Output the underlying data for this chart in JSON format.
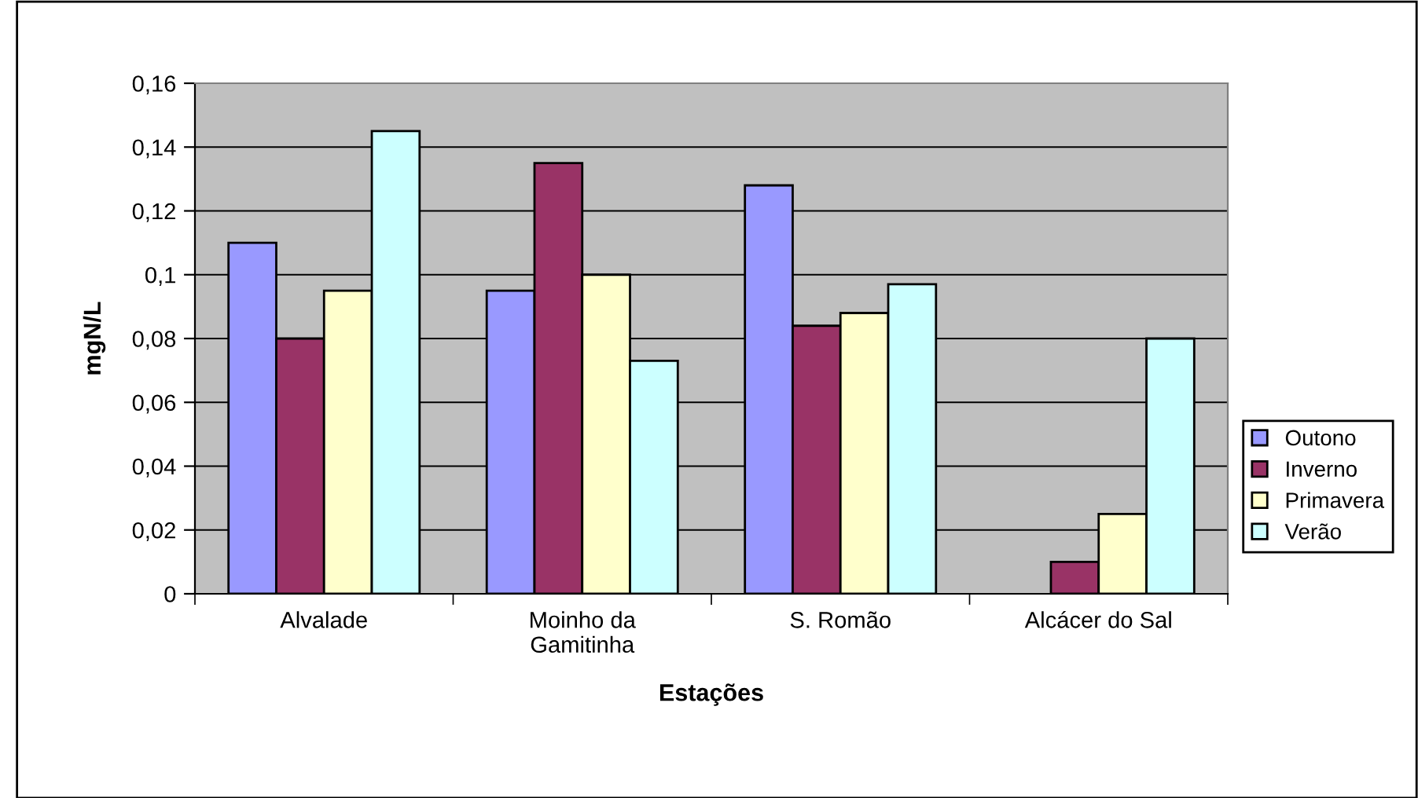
{
  "chart_data": {
    "type": "bar",
    "xlabel": "Estações",
    "ylabel": "mgN/L",
    "categories": [
      "Alvalade",
      "Moinho da\nGamitinha",
      "S. Romão",
      "Alcácer do Sal"
    ],
    "series": [
      {
        "name": "Outono",
        "color": "#9999ff",
        "values": [
          0.11,
          0.095,
          0.128,
          null
        ]
      },
      {
        "name": "Inverno",
        "color": "#993366",
        "values": [
          0.08,
          0.135,
          0.084,
          0.01
        ]
      },
      {
        "name": "Primavera",
        "color": "#ffffcc",
        "values": [
          0.095,
          0.1,
          0.088,
          0.025
        ]
      },
      {
        "name": "Verão",
        "color": "#ccffff",
        "values": [
          0.145,
          0.073,
          0.097,
          0.08
        ]
      }
    ],
    "ylim": [
      0,
      0.16
    ],
    "yticks": [
      {
        "value": 0,
        "label": "0"
      },
      {
        "value": 0.02,
        "label": "0,02"
      },
      {
        "value": 0.04,
        "label": "0,04"
      },
      {
        "value": 0.06,
        "label": "0,06"
      },
      {
        "value": 0.08,
        "label": "0,08"
      },
      {
        "value": 0.1,
        "label": "0,1"
      },
      {
        "value": 0.12,
        "label": "0,12"
      },
      {
        "value": 0.14,
        "label": "0,14"
      },
      {
        "value": 0.16,
        "label": "0,16"
      }
    ],
    "grid": "y",
    "legend": "right"
  }
}
